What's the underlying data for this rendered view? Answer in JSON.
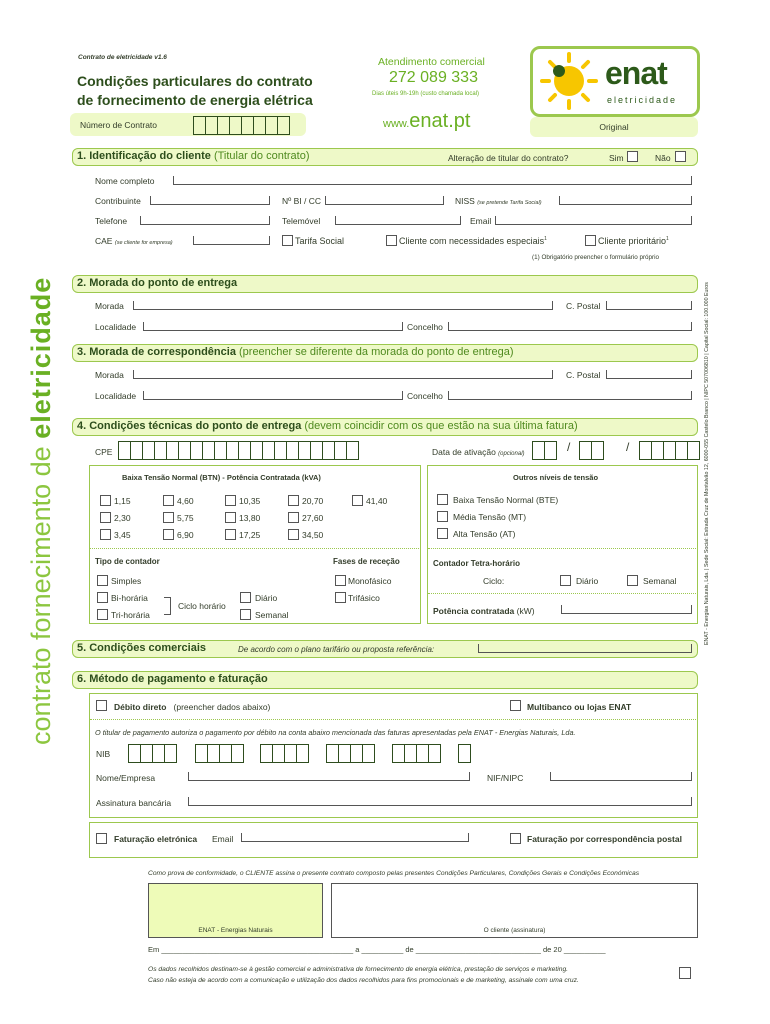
{
  "header": {
    "version": "Contrato de eletricidade v1.6",
    "title_line1": "Condições particulares do contrato",
    "title_line2": "de fornecimento de energia elétrica",
    "contract_number_label": "Número de Contrato",
    "service_label": "Atendimento comercial",
    "phone": "272 089 333",
    "hours": "Dias úteis 9h-19h (custo chamada local)",
    "web_prefix": "www.",
    "web_domain": "enat.pt",
    "logo_word": "enat",
    "logo_sub": "eletricidade",
    "copy_label": "Original"
  },
  "side": {
    "left_light": "contrato fornecimento de",
    "left_bold": "eletricidade",
    "right": "ENAT - Energias Naturais, Lda. | Sede Social: Estrada Cruz de Montalvão 12, 6000-055 Castelo Branco | NIPC 507006810 | Capital Social: 100.000 Euros"
  },
  "s1": {
    "title": "1. Identificação do cliente",
    "subtitle": "(Titular do contrato)",
    "change_q": "Alteração de titular do contrato?",
    "yes": "Sim",
    "no": "Não",
    "name": "Nome completo",
    "nif": "Contribuinte",
    "bi": "Nº BI / CC",
    "niss": "NISS",
    "niss_note": "(se pretende Tarifa Social)",
    "phone": "Telefone",
    "mobile": "Telemóvel",
    "email": "Email",
    "cae": "CAE",
    "cae_note": "(se cliente for empresa)",
    "social": "Tarifa Social",
    "special": "Cliente com necessidades especiais",
    "priority": "Cliente prioritário",
    "sup": "1",
    "footnote": "(1) Obrigatório preencher o formulário próprio"
  },
  "s2": {
    "title": "2. Morada do ponto de entrega",
    "address": "Morada",
    "postal": "C. Postal",
    "locality": "Localidade",
    "county": "Concelho"
  },
  "s3": {
    "title": "3. Morada de correspondência",
    "subtitle": "(preencher se diferente da morada do ponto de entrega)",
    "address": "Morada",
    "postal": "C. Postal",
    "locality": "Localidade",
    "county": "Concelho"
  },
  "s4": {
    "title": "4. Condições técnicas do ponto de entrega",
    "subtitle": "(devem coincidir com os que estão na sua última fatura)",
    "cpe": "CPE",
    "activation": "Data de ativação",
    "optional": "(opcional)",
    "slash": "/",
    "btn_title": "Baixa Tensão Normal (BTN) - Potência Contratada (kVA)",
    "powers": [
      "1,15",
      "4,60",
      "10,35",
      "20,70",
      "41,40",
      "2,30",
      "5,75",
      "13,80",
      "27,60",
      "3,45",
      "6,90",
      "17,25",
      "34,50"
    ],
    "meter_type": "Tipo de contador",
    "simple": "Simples",
    "bi": "Bi-horária",
    "tri": "Tri-horária",
    "cycle": "Ciclo horário",
    "daily": "Diário",
    "weekly": "Semanal",
    "phases": "Fases de receção",
    "mono": "Monofásico",
    "triph": "Trifásico",
    "other_title": "Outros níveis de tensão",
    "bte": "Baixa Tensão Normal (BTE)",
    "mt": "Média Tensão (MT)",
    "at": "Alta Tensão (AT)",
    "tetra": "Contador Tetra-horário",
    "cycle_label": "Ciclo:",
    "power_kw": "Potência contratada",
    "power_unit": "(kW)"
  },
  "s5": {
    "title": "5. Condições comerciais",
    "note": "De acordo com o plano tarifário ou proposta referência:"
  },
  "s6": {
    "title": "6. Método de pagamento e faturação",
    "debit": "Débito direto",
    "debit_note": "(preencher dados abaixo)",
    "mb": "Multibanco ou lojas ENAT",
    "auth": "O titular de pagamento autoriza o pagamento por débito na conta abaixo mencionada das faturas apresentadas pela ENAT - Energias Naturais, Lda.",
    "nib": "NIB",
    "name": "Nome/Empresa",
    "nif": "NIF/NIPC",
    "sig": "Assinatura bancária",
    "ebill": "Faturação eletrónica",
    "email": "Email",
    "post": "Faturação por correspondência postal"
  },
  "footer": {
    "proof": "Como prova de conformidade, o CLIENTE assina o presente contrato composto pelas presentes Condições Particulares, Condições Gerais e Condições Económicas",
    "enat_sig": "ENAT - Energias Naturais",
    "client_sig": "O cliente (assinatura)",
    "date_line": "Em ______________________________________________ a __________ de ______________________________ de 20 __________",
    "privacy1": "Os dados recolhidos destinam-se à gestão comercial e administrativa de fornecimento de energia elétrica, prestação de serviços e marketing.",
    "privacy2": "Caso não esteja de acordo com a comunicação e utilização dos dados recolhidos para fins promocionais e de marketing, assinale com uma cruz."
  },
  "colors": {
    "dark_green": "#2d4e1c",
    "accent_green": "#6ab023",
    "light_fill": "#eef9c8",
    "border": "#9cc84e",
    "sun": "#f7c600"
  }
}
